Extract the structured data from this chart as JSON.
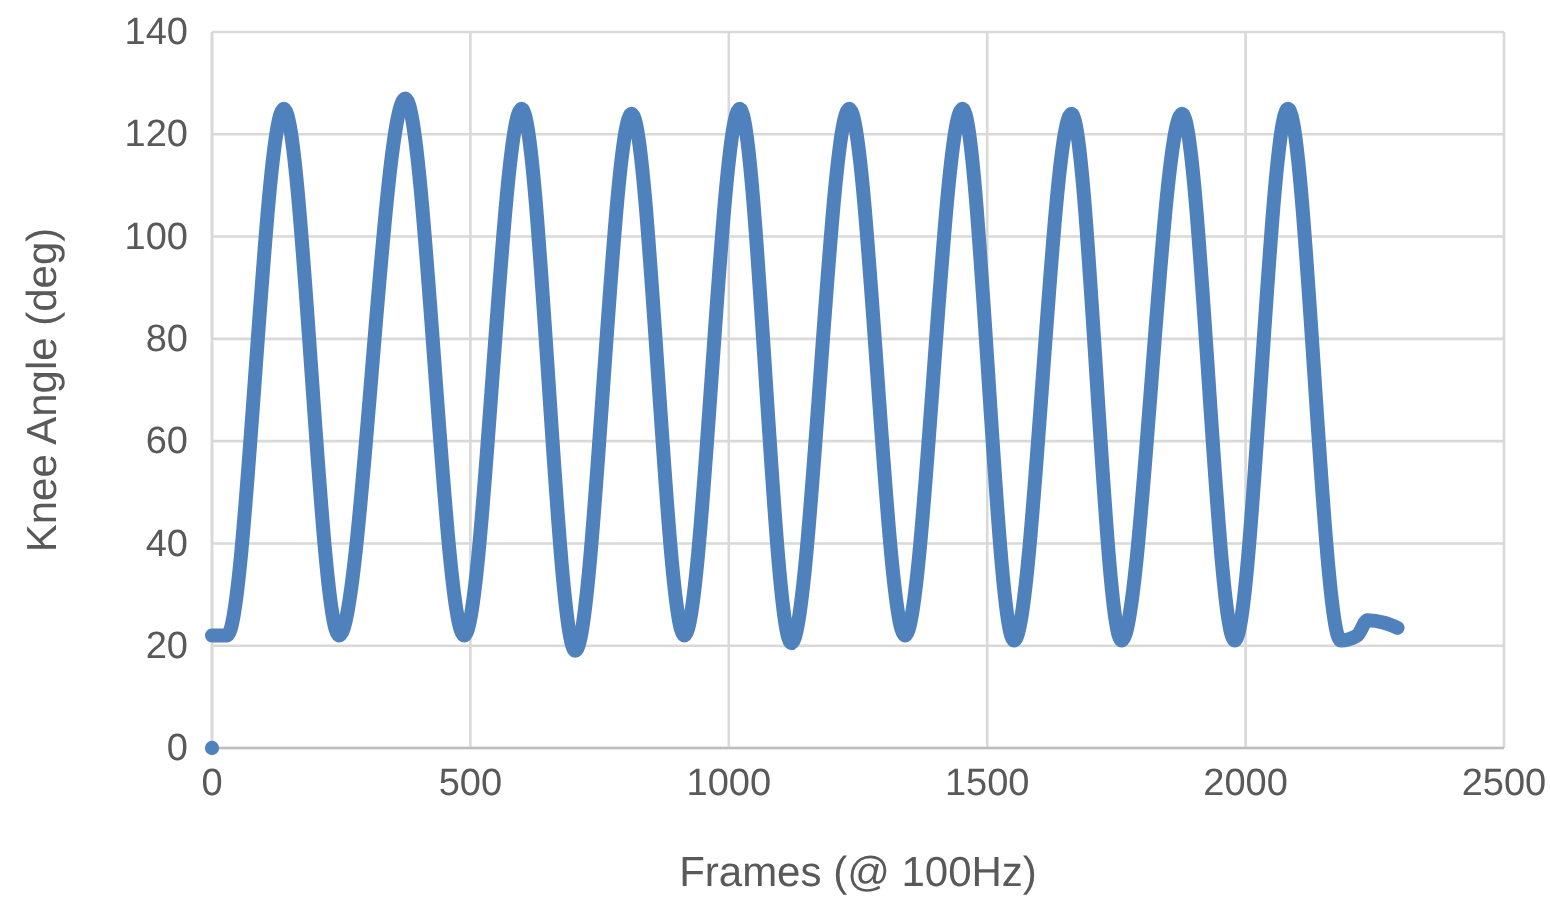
{
  "chart_data": {
    "type": "line",
    "xlabel": "Frames (@ 100Hz)",
    "ylabel": "Knee Angle (deg)",
    "xlim": [
      0,
      2500
    ],
    "xticks": [
      0,
      500,
      1000,
      1500,
      2000,
      2500
    ],
    "ylim": [
      0,
      140
    ],
    "yticks": [
      0,
      20,
      40,
      60,
      80,
      100,
      120,
      140
    ],
    "grid": true,
    "series": [
      {
        "color": "#4f81bd",
        "x": [
          0,
          29,
          139,
          246,
          374,
          488,
          599,
          703,
          812,
          914,
          1021,
          1121,
          1233,
          1341,
          1452,
          1552,
          1663,
          1760,
          1877,
          1979,
          2082,
          2184,
          2216,
          2236,
          2268,
          2294
        ],
        "values": [
          22,
          22,
          125,
          22,
          127,
          22,
          125,
          19,
          124,
          22,
          125,
          20.5,
          125,
          22,
          125,
          21,
          124,
          21,
          124,
          21,
          125,
          21,
          22,
          25,
          24.5,
          23.5
        ]
      },
      {
        "type": "scatter",
        "color": "#4f81bd",
        "marker": "circle",
        "x": [
          0
        ],
        "values": [
          0
        ]
      }
    ]
  }
}
